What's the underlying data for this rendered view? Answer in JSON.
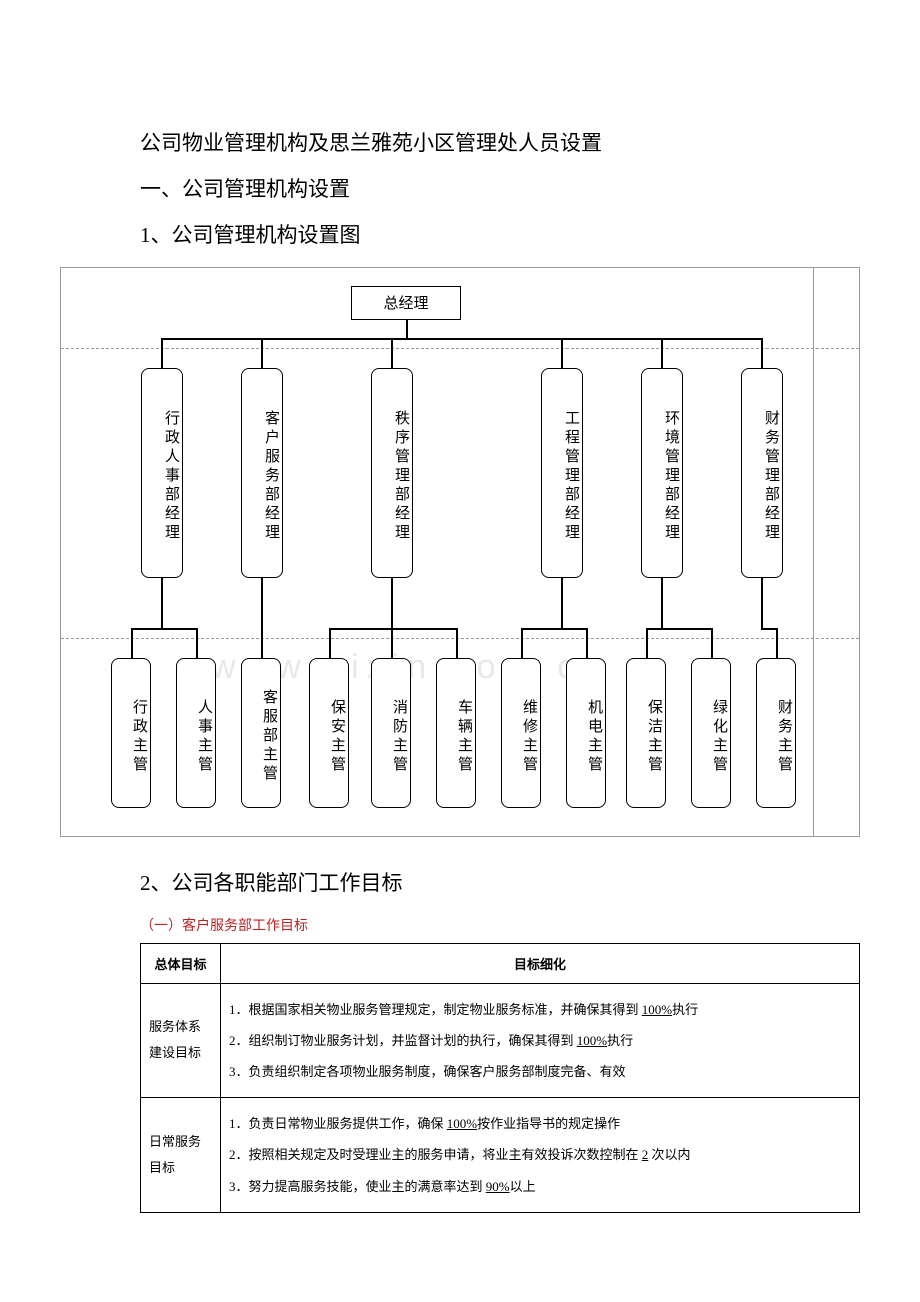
{
  "headings": {
    "h1": "公司物业管理机构及思兰雅苑小区管理处人员设置",
    "h2": "一、公司管理机构设置",
    "h3": "1、公司管理机构设置图",
    "h4": "2、公司各职能部门工作目标"
  },
  "watermark": "www  zixin  com  cn",
  "org": {
    "top": "总经理",
    "mid_x": [
      80,
      180,
      310,
      480,
      580,
      680
    ],
    "mid_labels": [
      "行政人事部经理",
      "客户服务部经理",
      "秩序管理部经理",
      "工程管理部经理",
      "环境管理部经理",
      "财务管理部经理"
    ],
    "bot_x": [
      50,
      115,
      180,
      248,
      310,
      375,
      440,
      505,
      565,
      630,
      695
    ],
    "bot_labels": [
      "行政主管",
      "人事主管",
      "客服部主管",
      "保安主管",
      "消防主管",
      "车辆主管",
      "维修主管",
      "机电主管",
      "保洁主管",
      "绿化主管",
      "财务主管"
    ]
  },
  "table": {
    "caption": "（一）客户服务部工作目标",
    "col1": "总体目标",
    "col2": "目标细化",
    "rows": [
      {
        "label": "服务体系建设目标",
        "items": [
          "1．根据国家相关物业服务管理规定，制定物业服务标准，并确保其得到 <u>100%</u>执行",
          "2．组织制订物业服务计划，并监督计划的执行，确保其得到 <u>100%</u>执行",
          "3．负责组织制定各项物业服务制度，确保客户服务部制度完备、有效"
        ]
      },
      {
        "label": "日常服务目标",
        "items": [
          "1．负责日常物业服务提供工作，确保 <u>100%</u>按作业指导书的规定操作",
          "2．按照相关规定及时受理业主的服务申请，将业主有效投诉次数控制在 <u>2</u> 次以内",
          "3．努力提高服务技能，使业主的满意率达到 <u>90%</u>以上"
        ]
      }
    ]
  },
  "colors": {
    "text": "#000000",
    "border": "#999999",
    "caption": "#bb2222",
    "bg": "#ffffff"
  }
}
